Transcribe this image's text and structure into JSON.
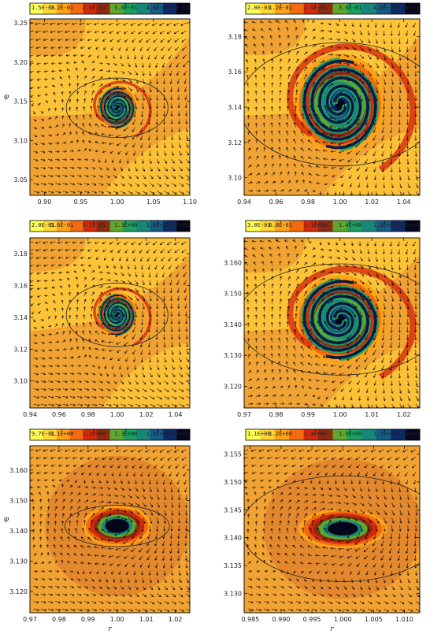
{
  "chart_data": [
    {
      "type": "heatmap",
      "panel": "top-left",
      "colorbar_ticks": [
        "1.5E-03",
        "1.2E-01",
        "2.4E-01",
        "3.6E-01",
        "4.8E-01",
        "6.0E-01"
      ],
      "colorbar_range": [
        0.0015,
        0.6
      ],
      "x_ticks": [
        0.9,
        0.95,
        1.0,
        1.05,
        1.1
      ],
      "x_tick_labels": [
        "0.90",
        "0.95",
        "1.00",
        "1.05",
        "1.10"
      ],
      "y_ticks": [
        3.05,
        3.1,
        3.15,
        3.2,
        3.25
      ],
      "y_tick_labels": [
        "3.05",
        "3.10",
        "3.15",
        "3.20",
        "3.25"
      ],
      "xlim": [
        0.88,
        1.1
      ],
      "ylim": [
        3.03,
        3.255
      ],
      "xlabel": "",
      "ylabel": "φ",
      "center": [
        1.0,
        3.1416
      ],
      "ellipse": {
        "rx": 0.07,
        "ry": 0.038
      },
      "feature": "spiral",
      "vortex_radius": [
        0.018,
        0.018
      ]
    },
    {
      "type": "heatmap",
      "panel": "top-right",
      "colorbar_ticks": [
        "2.0E-03",
        "1.2E-01",
        "2.4E-01",
        "3.6E-01",
        "4.8E-01",
        "6.0E-01"
      ],
      "colorbar_range": [
        0.002,
        0.6
      ],
      "x_ticks": [
        0.94,
        0.96,
        0.98,
        1.0,
        1.02,
        1.04
      ],
      "x_tick_labels": [
        "0.94",
        "0.96",
        "0.98",
        "1.00",
        "1.02",
        "1.04"
      ],
      "y_ticks": [
        3.1,
        3.12,
        3.14,
        3.16,
        3.18
      ],
      "y_tick_labels": [
        "3.10",
        "3.12",
        "3.14",
        "3.16",
        "3.18"
      ],
      "xlim": [
        0.94,
        1.05
      ],
      "ylim": [
        3.09,
        3.19
      ],
      "xlabel": "",
      "ylabel": "",
      "center": [
        1.0,
        3.1416
      ],
      "ellipse": {
        "rx": 0.063,
        "ry": 0.035
      },
      "feature": "spiral",
      "vortex_radius": [
        0.018,
        0.018
      ]
    },
    {
      "type": "heatmap",
      "panel": "middle-left",
      "colorbar_ticks": [
        "2.0E-01",
        "5.6E-01",
        "9.2E-01",
        "1.3E+00",
        "1.6E+00",
        "2.0E+00"
      ],
      "colorbar_range": [
        0.2,
        2.0
      ],
      "x_ticks": [
        0.94,
        0.96,
        0.98,
        1.0,
        1.02,
        1.04
      ],
      "x_tick_labels": [
        "0.94",
        "0.96",
        "0.98",
        "1.00",
        "1.02",
        "1.04"
      ],
      "y_ticks": [
        3.1,
        3.12,
        3.14,
        3.16,
        3.18
      ],
      "y_tick_labels": [
        "3.10",
        "3.12",
        "3.14",
        "3.16",
        "3.18"
      ],
      "xlim": [
        0.94,
        1.05
      ],
      "ylim": [
        3.083,
        3.19
      ],
      "xlabel": "",
      "ylabel": "",
      "center": [
        1.0,
        3.1416
      ],
      "ellipse": {
        "rx": 0.035,
        "ry": 0.02
      },
      "feature": "spiral",
      "vortex_radius": [
        0.009,
        0.009
      ]
    },
    {
      "type": "heatmap",
      "panel": "middle-right",
      "colorbar_ticks": [
        "3.0E-01",
        "6.8E-01",
        "1.1E+00",
        "1.4E+00",
        "1.8E+00",
        "2.2E+00"
      ],
      "colorbar_range": [
        0.3,
        2.2
      ],
      "x_ticks": [
        0.97,
        0.98,
        0.99,
        1.0,
        1.01,
        1.02
      ],
      "x_tick_labels": [
        "0.97",
        "0.98",
        "0.99",
        "1.00",
        "1.01",
        "1.02"
      ],
      "y_ticks": [
        3.12,
        3.13,
        3.14,
        3.15,
        3.16
      ],
      "y_tick_labels": [
        "3.120",
        "3.130",
        "3.140",
        "3.150",
        "3.160"
      ],
      "xlim": [
        0.97,
        1.025
      ],
      "ylim": [
        3.113,
        3.168
      ],
      "xlabel": "",
      "ylabel": "",
      "center": [
        1.0,
        3.1416
      ],
      "ellipse": {
        "rx": 0.032,
        "ry": 0.018
      },
      "feature": "spiral",
      "vortex_radius": [
        0.009,
        0.009
      ]
    },
    {
      "type": "heatmap",
      "panel": "bottom-left",
      "colorbar_ticks": [
        "9.7E-01",
        "1.1E+00",
        "1.2E+00",
        "1.3E+00",
        "1.5E+00",
        "1.6E+00"
      ],
      "colorbar_range": [
        0.97,
        1.6
      ],
      "x_ticks": [
        0.97,
        0.98,
        0.99,
        1.0,
        1.01,
        1.02
      ],
      "x_tick_labels": [
        "0.97",
        "0.98",
        "0.99",
        "1.00",
        "1.01",
        "1.02"
      ],
      "y_ticks": [
        3.12,
        3.13,
        3.14,
        3.15,
        3.16
      ],
      "y_tick_labels": [
        "3.120",
        "3.130",
        "3.140",
        "3.150",
        "3.160"
      ],
      "xlim": [
        0.97,
        1.025
      ],
      "ylim": [
        3.113,
        3.168
      ],
      "xlabel": "r",
      "ylabel": "φ",
      "center": [
        1.0,
        3.1416
      ],
      "ellipse": {
        "rx": 0.018,
        "ry": 0.0068
      },
      "feature": "blob",
      "vortex_radius": [
        0.0075,
        0.0042
      ]
    },
    {
      "type": "heatmap",
      "panel": "bottom-right",
      "colorbar_ticks": [
        "1.1E+00",
        "1.2E+00",
        "1.4E+00",
        "1.5E+00",
        "1.7E+00",
        "1.8E+00"
      ],
      "colorbar_range": [
        1.1,
        1.8
      ],
      "x_ticks": [
        0.985,
        0.99,
        0.995,
        1.0,
        1.005,
        1.01
      ],
      "x_tick_labels": [
        "0.985",
        "0.990",
        "0.995",
        "1.000",
        "1.005",
        "1.010"
      ],
      "y_ticks": [
        3.13,
        3.135,
        3.14,
        3.145,
        3.15,
        3.155
      ],
      "y_tick_labels": [
        "3.130",
        "3.135",
        "3.140",
        "3.145",
        "3.150",
        "3.155"
      ],
      "xlim": [
        0.984,
        1.0125
      ],
      "ylim": [
        3.1265,
        3.1565
      ],
      "xlabel": "r",
      "ylabel": "",
      "center": [
        1.0,
        3.1416
      ],
      "ellipse": {
        "rx": 0.0165,
        "ry": 0.0095
      },
      "feature": "blob",
      "vortex_radius": [
        0.0045,
        0.0022
      ]
    }
  ],
  "colormap": [
    "#FFFF55",
    "#FFD633",
    "#FFA31A",
    "#F26B0F",
    "#D42A0C",
    "#8E2A12",
    "#5FA82D",
    "#1CA060",
    "#19867A",
    "#155C85",
    "#0D2A6A",
    "#05061C"
  ],
  "background_color": "#F0A232",
  "arrow_color": "#000000"
}
